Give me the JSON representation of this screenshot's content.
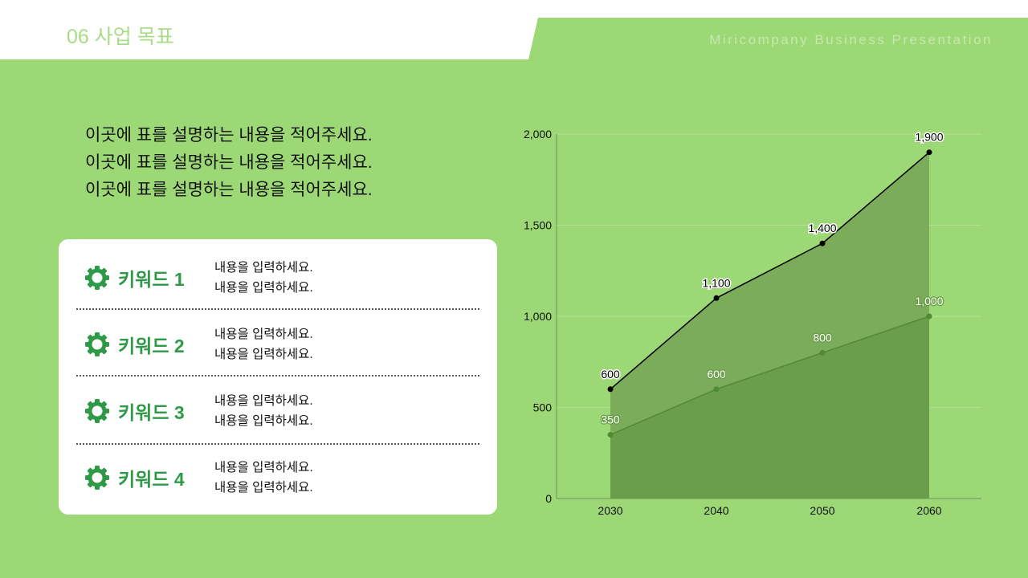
{
  "header": {
    "title": "06 사업 목표",
    "brand": "Miricompany Business Presentation"
  },
  "description": {
    "lines": [
      "이곳에 표를 설명하는 내용을 적어주세요.",
      "이곳에 표를 설명하는 내용을 적어주세요.",
      "이곳에 표를 설명하는 내용을 적어주세요."
    ]
  },
  "keywords": [
    {
      "label": "키워드 1",
      "text": [
        "내용을 입력하세요.",
        "내용을 입력하세요."
      ]
    },
    {
      "label": "키워드 2",
      "text": [
        "내용을 입력하세요.",
        "내용을 입력하세요."
      ]
    },
    {
      "label": "키워드 3",
      "text": [
        "내용을 입력하세요.",
        "내용을 입력하세요."
      ]
    },
    {
      "label": "키워드 4",
      "text": [
        "내용을 입력하세요.",
        "내용을 입력하세요."
      ]
    }
  ],
  "colors": {
    "background": "#9cd876",
    "keyword_green": "#2e9a48",
    "series1_fill": "#78aa57",
    "series2_fill": "#6a9d4a"
  },
  "chart_data": {
    "type": "area",
    "x": [
      "2030",
      "2040",
      "2050",
      "2060"
    ],
    "series": [
      {
        "values": [
          600,
          1100,
          1400,
          1900
        ],
        "data_labels": [
          "600",
          "1,100",
          "1,400",
          "1,900"
        ]
      },
      {
        "values": [
          350,
          600,
          800,
          1000
        ],
        "data_labels": [
          "350",
          "600",
          "800",
          "1,000"
        ]
      }
    ],
    "y_ticks": [
      0,
      500,
      1000,
      1500,
      2000
    ],
    "y_tick_labels": [
      "0",
      "500",
      "1,000",
      "1,500",
      "2,000"
    ],
    "ylim": [
      0,
      2000
    ],
    "grid": true,
    "title": "",
    "xlabel": "",
    "ylabel": ""
  }
}
